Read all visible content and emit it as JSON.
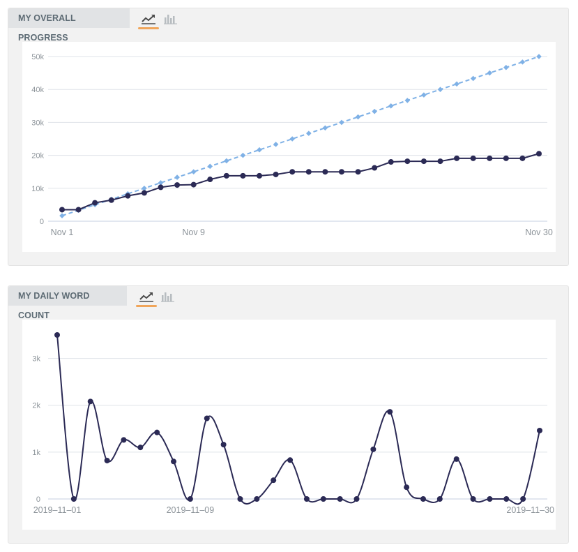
{
  "colors": {
    "actual": "#2b2a55",
    "target": "#7fb1e6",
    "grid": "#dfe3e8",
    "axis": "#c5cfe0",
    "tick_text": "#8c9399",
    "tab_accent": "#f0a55a"
  },
  "progress_panel": {
    "title": "MY OVERALL PROGRESS",
    "line_icon": "line-chart-icon",
    "bar_icon": "bar-chart-icon",
    "active_view": "line"
  },
  "daily_panel": {
    "title": "MY DAILY WORD COUNT",
    "line_icon": "line-chart-icon",
    "bar_icon": "bar-chart-icon",
    "active_view": "line"
  },
  "chart_data": [
    {
      "type": "line",
      "x_axis": {
        "min": 1,
        "max": 30,
        "ticks": [
          {
            "x": 1,
            "label": "Nov 1"
          },
          {
            "x": 9,
            "label": "Nov 9"
          },
          {
            "x": 30,
            "label": "Nov 30"
          }
        ]
      },
      "y_axis": {
        "min": 0,
        "max": 50000,
        "ticks": [
          {
            "y": 0,
            "label": "0"
          },
          {
            "y": 10000,
            "label": "10k"
          },
          {
            "y": 20000,
            "label": "20k"
          },
          {
            "y": 30000,
            "label": "30k"
          },
          {
            "y": 40000,
            "label": "40k"
          },
          {
            "y": 50000,
            "label": "50k"
          }
        ]
      },
      "grid": true,
      "legend": "none",
      "series": [
        {
          "style": "dashed-diamond",
          "color": "#7fb1e6",
          "x": [
            1,
            2,
            3,
            4,
            5,
            6,
            7,
            8,
            9,
            10,
            11,
            12,
            13,
            14,
            15,
            16,
            17,
            18,
            19,
            20,
            21,
            22,
            23,
            24,
            25,
            26,
            27,
            28,
            29,
            30
          ],
          "values": [
            1667,
            3333,
            5000,
            6667,
            8333,
            10000,
            11667,
            13333,
            15000,
            16667,
            18333,
            20000,
            21667,
            23333,
            25000,
            26667,
            28333,
            30000,
            31667,
            33333,
            35000,
            36667,
            38333,
            40000,
            41667,
            43333,
            45000,
            46667,
            48333,
            50000
          ]
        },
        {
          "style": "solid-circle",
          "color": "#2b2a55",
          "x": [
            1,
            2,
            3,
            4,
            5,
            6,
            7,
            8,
            9,
            10,
            11,
            12,
            13,
            14,
            15,
            16,
            17,
            18,
            19,
            20,
            21,
            22,
            23,
            24,
            25,
            26,
            27,
            28,
            29,
            30
          ],
          "values": [
            3500,
            3500,
            5600,
            6400,
            7700,
            8600,
            10300,
            11000,
            11100,
            12700,
            13800,
            13800,
            13800,
            14200,
            15000,
            15000,
            15000,
            15000,
            15000,
            16200,
            18000,
            18200,
            18200,
            18200,
            19100,
            19100,
            19100,
            19100,
            19100,
            20500
          ]
        }
      ]
    },
    {
      "type": "line",
      "x_axis": {
        "min": 1,
        "max": 30,
        "ticks": [
          {
            "x": 1,
            "label": "2019–11–01"
          },
          {
            "x": 9,
            "label": "2019–11–09"
          },
          {
            "x": 30,
            "label": "2019–11–30"
          }
        ]
      },
      "y_axis": {
        "min": 0,
        "max": 3500,
        "ticks": [
          {
            "y": 0,
            "label": "0"
          },
          {
            "y": 1000,
            "label": "1k"
          },
          {
            "y": 2000,
            "label": "2k"
          },
          {
            "y": 3000,
            "label": "3k"
          }
        ]
      },
      "grid": true,
      "legend": "none",
      "series": [
        {
          "style": "smooth-circle",
          "color": "#2b2a55",
          "x": [
            1,
            2,
            3,
            4,
            5,
            6,
            7,
            8,
            9,
            10,
            11,
            12,
            13,
            14,
            15,
            16,
            17,
            18,
            19,
            20,
            21,
            22,
            23,
            24,
            25,
            26,
            27,
            28,
            29,
            30
          ],
          "values": [
            3500,
            0,
            2080,
            820,
            1260,
            1100,
            1420,
            800,
            0,
            1720,
            1160,
            0,
            0,
            400,
            830,
            0,
            0,
            0,
            0,
            1060,
            1860,
            250,
            0,
            0,
            850,
            0,
            0,
            0,
            0,
            1460
          ]
        }
      ]
    }
  ]
}
